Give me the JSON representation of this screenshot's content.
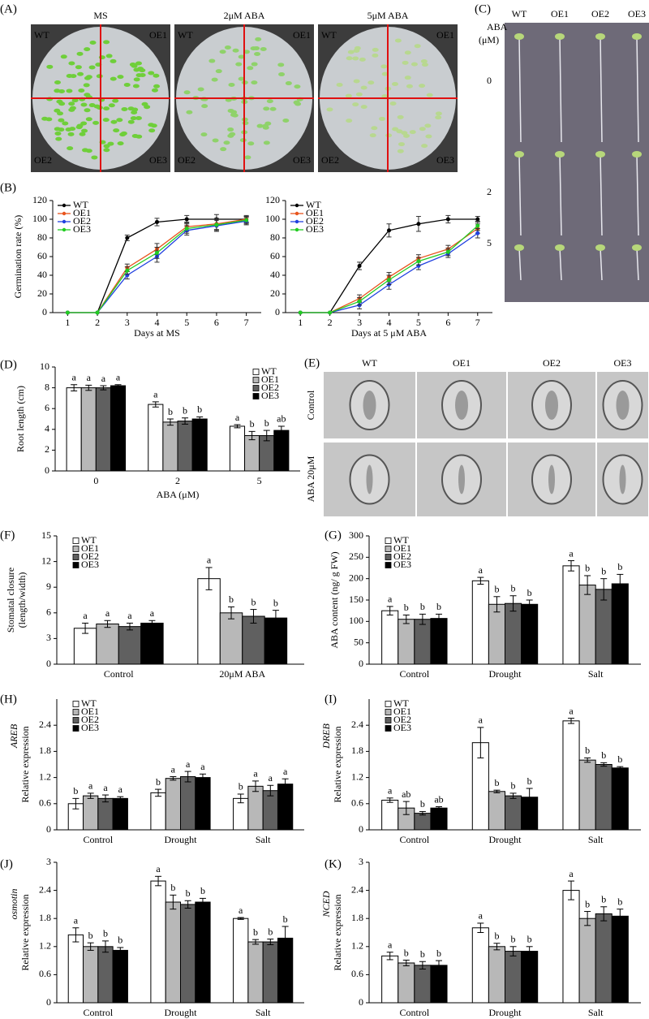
{
  "figure": {
    "A": {
      "label": "(A)",
      "plates": [
        "MS",
        "2μM ABA",
        "5μM ABA"
      ],
      "quadrants": [
        "WT",
        "OE1",
        "OE2",
        "OE3"
      ]
    },
    "C": {
      "label": "(C)",
      "columns": [
        "WT",
        "OE1",
        "OE2",
        "OE3"
      ],
      "row_title": [
        "ABA",
        "(μM)"
      ],
      "rows": [
        "0",
        "2",
        "5"
      ]
    },
    "E": {
      "label": "(E)",
      "columns": [
        "WT",
        "OE1",
        "OE2",
        "OE3"
      ],
      "rows": [
        "Control",
        "ABA  20μM"
      ]
    }
  },
  "chart_data": [
    {
      "type": "line",
      "panel_label": "(B)",
      "ylabel": [
        "Germination rate (%)"
      ],
      "xlabel": "Days at MS",
      "x": [
        1,
        2,
        3,
        4,
        5,
        6,
        7
      ],
      "xlim": [
        0.5,
        7.5
      ],
      "xticks": [
        1,
        2,
        3,
        4,
        5,
        6,
        7
      ],
      "ylim": [
        0,
        120
      ],
      "yticks": [
        0,
        20,
        40,
        60,
        80,
        100,
        120
      ],
      "legend": "upper left",
      "series": [
        {
          "name": "WT",
          "color": "#000000",
          "values": [
            0,
            0,
            80,
            97,
            100,
            100,
            100
          ],
          "errors": [
            0,
            0,
            3,
            4,
            4,
            5,
            3
          ]
        },
        {
          "name": "OE1",
          "color": "#e8541c",
          "values": [
            0,
            0,
            48,
            68,
            92,
            95,
            100
          ],
          "errors": [
            0,
            0,
            4,
            6,
            5,
            6,
            4
          ]
        },
        {
          "name": "OE2",
          "color": "#2040e0",
          "values": [
            0,
            0,
            40,
            60,
            88,
            93,
            98
          ],
          "errors": [
            0,
            0,
            4,
            6,
            5,
            6,
            4
          ]
        },
        {
          "name": "OE3",
          "color": "#22cc22",
          "values": [
            0,
            0,
            45,
            64,
            90,
            94,
            99
          ],
          "errors": [
            0,
            0,
            4,
            6,
            5,
            6,
            4
          ]
        }
      ]
    },
    {
      "type": "line",
      "ylabel": [],
      "xlabel": "Days at 5 μM ABA",
      "x": [
        1,
        2,
        3,
        4,
        5,
        6,
        7
      ],
      "xlim": [
        0.5,
        7.5
      ],
      "xticks": [
        1,
        2,
        3,
        4,
        5,
        6,
        7
      ],
      "ylim": [
        0,
        120
      ],
      "yticks": [
        0,
        20,
        40,
        60,
        80,
        100,
        120
      ],
      "legend": "upper left",
      "series": [
        {
          "name": "WT",
          "color": "#000000",
          "values": [
            0,
            0,
            50,
            88,
            95,
            100,
            100
          ],
          "errors": [
            0,
            0,
            4,
            7,
            8,
            4,
            3
          ]
        },
        {
          "name": "OE1",
          "color": "#e8541c",
          "values": [
            0,
            0,
            15,
            38,
            58,
            68,
            90
          ],
          "errors": [
            0,
            0,
            4,
            5,
            4,
            4,
            5
          ]
        },
        {
          "name": "OE2",
          "color": "#2040e0",
          "values": [
            0,
            0,
            8,
            30,
            50,
            63,
            85
          ],
          "errors": [
            0,
            0,
            4,
            5,
            4,
            4,
            5
          ]
        },
        {
          "name": "OE3",
          "color": "#22cc22",
          "values": [
            0,
            0,
            12,
            35,
            55,
            65,
            93
          ],
          "errors": [
            0,
            0,
            4,
            5,
            4,
            4,
            5
          ]
        }
      ]
    },
    {
      "type": "bar",
      "panel_label": "(D)",
      "ylabel": [
        "Root length (cm)"
      ],
      "xlabel": "ABA (μM)",
      "categories": [
        "0",
        "2",
        "5"
      ],
      "ylim": [
        0,
        10
      ],
      "yticks": [
        0,
        2,
        4,
        6,
        8,
        10
      ],
      "legend": "upper right",
      "series": [
        {
          "name": "WT",
          "color": "#ffffff",
          "values": [
            8.0,
            6.4,
            4.3
          ],
          "errors": [
            0.3,
            0.25,
            0.15
          ],
          "letters": [
            "a",
            "a",
            "a"
          ]
        },
        {
          "name": "OE1",
          "color": "#b8b8b8",
          "values": [
            8.0,
            4.7,
            3.4
          ],
          "errors": [
            0.25,
            0.3,
            0.4
          ],
          "letters": [
            "a",
            "b",
            "b"
          ]
        },
        {
          "name": "OE2",
          "color": "#606060",
          "values": [
            8.0,
            4.8,
            3.4
          ],
          "errors": [
            0.2,
            0.3,
            0.5
          ],
          "letters": [
            "a",
            "b",
            "b"
          ]
        },
        {
          "name": "OE3",
          "color": "#000000",
          "values": [
            8.2,
            5.0,
            3.9
          ],
          "errors": [
            0.1,
            0.2,
            0.4
          ],
          "letters": [
            "a",
            "b",
            "ab"
          ]
        }
      ]
    },
    {
      "type": "bar",
      "panel_label": "(F)",
      "ylabel": [
        "Stomatal closure",
        "(length/width)"
      ],
      "categories": [
        "Control",
        "20μM ABA"
      ],
      "ylim": [
        0,
        15
      ],
      "yticks": [
        0,
        3,
        6,
        9,
        12,
        15
      ],
      "legend": "upper left",
      "series": [
        {
          "name": "WT",
          "color": "#ffffff",
          "values": [
            4.2,
            10
          ],
          "errors": [
            0.6,
            1.3
          ],
          "letters": [
            "a",
            "a"
          ]
        },
        {
          "name": "OE1",
          "color": "#b8b8b8",
          "values": [
            4.7,
            6.0
          ],
          "errors": [
            0.4,
            0.7
          ],
          "letters": [
            "a",
            "b"
          ]
        },
        {
          "name": "OE2",
          "color": "#606060",
          "values": [
            4.4,
            5.6
          ],
          "errors": [
            0.4,
            0.8
          ],
          "letters": [
            "a",
            "b"
          ]
        },
        {
          "name": "OE3",
          "color": "#000000",
          "values": [
            4.8,
            5.4
          ],
          "errors": [
            0.3,
            0.9
          ],
          "letters": [
            "a",
            "b"
          ]
        }
      ]
    },
    {
      "type": "bar",
      "panel_label": "(G)",
      "ylabel": [
        "ABA content (ng/ g  FW)"
      ],
      "categories": [
        "Control",
        "Drought",
        "Salt"
      ],
      "ylim": [
        0,
        300
      ],
      "yticks": [
        0,
        50,
        100,
        150,
        200,
        250,
        300
      ],
      "legend": "upper left",
      "series": [
        {
          "name": "WT",
          "color": "#ffffff",
          "values": [
            125,
            195,
            230
          ],
          "errors": [
            10,
            8,
            12
          ],
          "letters": [
            "a",
            "a",
            "a"
          ]
        },
        {
          "name": "OE1",
          "color": "#b8b8b8",
          "values": [
            105,
            140,
            185
          ],
          "errors": [
            10,
            18,
            22
          ],
          "letters": [
            "b",
            "b",
            "b"
          ]
        },
        {
          "name": "OE2",
          "color": "#606060",
          "values": [
            105,
            142,
            175
          ],
          "errors": [
            12,
            18,
            25
          ],
          "letters": [
            "b",
            "b",
            "b"
          ]
        },
        {
          "name": "OE3",
          "color": "#000000",
          "values": [
            107,
            140,
            188
          ],
          "errors": [
            10,
            10,
            22
          ],
          "letters": [
            "b",
            "b",
            "b"
          ]
        }
      ]
    },
    {
      "type": "bar",
      "panel_label": "(H)",
      "gene": "AREB",
      "ylabel": [
        "Relative expression"
      ],
      "categories": [
        "Control",
        "Drought",
        "Salt"
      ],
      "ylim": [
        0,
        3
      ],
      "yticks": [
        0,
        0.6,
        1.2,
        1.8,
        2.4
      ],
      "legend": "upper left",
      "series": [
        {
          "name": "WT",
          "color": "#ffffff",
          "values": [
            0.6,
            0.85,
            0.72
          ],
          "errors": [
            0.12,
            0.08,
            0.1
          ],
          "letters": [
            "b",
            "b",
            "b"
          ]
        },
        {
          "name": "OE1",
          "color": "#b8b8b8",
          "values": [
            0.78,
            1.18,
            1.0
          ],
          "errors": [
            0.06,
            0.04,
            0.12
          ],
          "letters": [
            "a",
            "a",
            "a"
          ]
        },
        {
          "name": "OE2",
          "color": "#606060",
          "values": [
            0.72,
            1.22,
            0.9
          ],
          "errors": [
            0.08,
            0.12,
            0.12
          ],
          "letters": [
            "a",
            "a",
            "a"
          ]
        },
        {
          "name": "OE3",
          "color": "#000000",
          "values": [
            0.72,
            1.2,
            1.05
          ],
          "errors": [
            0.04,
            0.08,
            0.12
          ],
          "letters": [
            "a",
            "a",
            "a"
          ]
        }
      ]
    },
    {
      "type": "bar",
      "panel_label": "(I)",
      "gene": "DREB",
      "ylabel": [
        "Relative expression"
      ],
      "categories": [
        "Control",
        "Drought",
        "Salt"
      ],
      "ylim": [
        0,
        3
      ],
      "yticks": [
        0,
        0.6,
        1.2,
        1.8,
        2.4
      ],
      "legend": "upper left",
      "series": [
        {
          "name": "WT",
          "color": "#ffffff",
          "values": [
            0.68,
            2.0,
            2.5
          ],
          "errors": [
            0.05,
            0.35,
            0.06
          ],
          "letters": [
            "a",
            "a",
            "a"
          ]
        },
        {
          "name": "OE1",
          "color": "#b8b8b8",
          "values": [
            0.5,
            0.88,
            1.6
          ],
          "errors": [
            0.15,
            0.03,
            0.05
          ],
          "letters": [
            "ab",
            "b",
            "b"
          ]
        },
        {
          "name": "OE2",
          "color": "#606060",
          "values": [
            0.38,
            0.78,
            1.5
          ],
          "errors": [
            0.04,
            0.06,
            0.04
          ],
          "letters": [
            "b",
            "b",
            "b"
          ]
        },
        {
          "name": "OE3",
          "color": "#000000",
          "values": [
            0.5,
            0.75,
            1.42
          ],
          "errors": [
            0.03,
            0.2,
            0.03
          ],
          "letters": [
            "ab",
            "b",
            "b"
          ]
        }
      ]
    },
    {
      "type": "bar",
      "panel_label": "(J)",
      "gene": "osmotin",
      "ylabel": [
        "Relative expression"
      ],
      "categories": [
        "Control",
        "Drought",
        "Salt"
      ],
      "ylim": [
        0,
        3
      ],
      "yticks": [
        0,
        0.6,
        1.2,
        1.8,
        2.4,
        3
      ],
      "series": [
        {
          "name": "WT",
          "color": "#ffffff",
          "values": [
            1.45,
            2.6,
            1.8
          ],
          "errors": [
            0.15,
            0.1,
            0.02
          ],
          "letters": [
            "a",
            "a",
            "a"
          ]
        },
        {
          "name": "OE1",
          "color": "#b8b8b8",
          "values": [
            1.2,
            2.15,
            1.3
          ],
          "errors": [
            0.08,
            0.15,
            0.05
          ],
          "letters": [
            "b",
            "b",
            "b"
          ]
        },
        {
          "name": "OE2",
          "color": "#606060",
          "values": [
            1.2,
            2.1,
            1.3
          ],
          "errors": [
            0.12,
            0.08,
            0.06
          ],
          "letters": [
            "b",
            "b",
            "b"
          ]
        },
        {
          "name": "OE3",
          "color": "#000000",
          "values": [
            1.12,
            2.15,
            1.38
          ],
          "errors": [
            0.06,
            0.08,
            0.25
          ],
          "letters": [
            "b",
            "b",
            "b"
          ]
        }
      ]
    },
    {
      "type": "bar",
      "panel_label": "(K)",
      "gene": "NCED",
      "ylabel": [
        "Relative expression"
      ],
      "categories": [
        "Control",
        "Drought",
        "Salt"
      ],
      "ylim": [
        0,
        3
      ],
      "yticks": [
        0,
        0.6,
        1.2,
        1.8,
        2.4,
        3
      ],
      "series": [
        {
          "name": "WT",
          "color": "#ffffff",
          "values": [
            1.0,
            1.6,
            2.4
          ],
          "errors": [
            0.08,
            0.1,
            0.2
          ],
          "letters": [
            "a",
            "a",
            "a"
          ]
        },
        {
          "name": "OE1",
          "color": "#b8b8b8",
          "values": [
            0.85,
            1.2,
            1.8
          ],
          "errors": [
            0.06,
            0.07,
            0.15
          ],
          "letters": [
            "b",
            "b",
            "b"
          ]
        },
        {
          "name": "OE2",
          "color": "#606060",
          "values": [
            0.8,
            1.1,
            1.9
          ],
          "errors": [
            0.08,
            0.1,
            0.15
          ],
          "letters": [
            "b",
            "b",
            "b"
          ]
        },
        {
          "name": "OE3",
          "color": "#000000",
          "values": [
            0.8,
            1.1,
            1.85
          ],
          "errors": [
            0.1,
            0.1,
            0.15
          ],
          "letters": [
            "b",
            "b",
            "b"
          ]
        }
      ]
    }
  ]
}
